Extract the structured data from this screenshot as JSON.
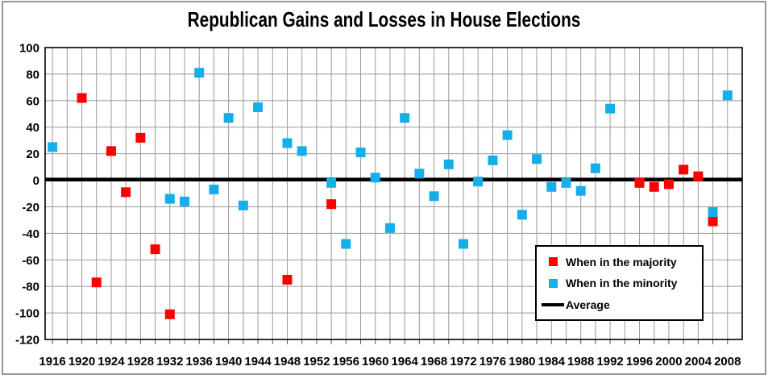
{
  "colors": {
    "majority": "#FF0000",
    "minority": "#14AFEB",
    "average": "#000000",
    "gridline": "#999999",
    "plot_border": "#000000",
    "tick": "#555555",
    "outer_frame": "#969696"
  },
  "legend": {
    "majority_label": "When in the majority",
    "minority_label": "When in the minority",
    "average_label": "Average"
  },
  "chart_data": {
    "type": "scatter",
    "title": "Republican Gains and Losses in House Elections",
    "xlabel": "",
    "ylabel": "",
    "xlim": [
      1915,
      2010
    ],
    "ylim": [
      -120,
      100
    ],
    "grid": true,
    "x_gridline_interval": 2,
    "x_first_gridline": 1916,
    "x_last_gridline": 2008,
    "y_tick_interval": 20,
    "x_ticks": [
      1916,
      1920,
      1924,
      1928,
      1932,
      1936,
      1940,
      1944,
      1948,
      1952,
      1956,
      1960,
      1964,
      1968,
      1972,
      1976,
      1980,
      1984,
      1988,
      1992,
      1996,
      2000,
      2004,
      2008
    ],
    "y_ticks": [
      100,
      80,
      60,
      40,
      20,
      0,
      -20,
      -40,
      -60,
      -80,
      -100,
      -120
    ],
    "legend_position": "inside lower-right",
    "marker": "square",
    "series": [
      {
        "key": "majority",
        "name": "When in the majority",
        "type": "scatter",
        "color": "#FF0000",
        "points": [
          [
            1920,
            62
          ],
          [
            1922,
            -77
          ],
          [
            1924,
            22
          ],
          [
            1926,
            -9
          ],
          [
            1928,
            32
          ],
          [
            1930,
            -52
          ],
          [
            1932,
            -101
          ],
          [
            1948,
            -75
          ],
          [
            1954,
            -18
          ],
          [
            1996,
            -2
          ],
          [
            1998,
            -5
          ],
          [
            2000,
            -3
          ],
          [
            2002,
            8
          ],
          [
            2004,
            3
          ],
          [
            2006,
            -31
          ]
        ]
      },
      {
        "key": "minority",
        "name": "When in the minority",
        "type": "scatter",
        "color": "#14AFEB",
        "points": [
          [
            1916,
            25
          ],
          [
            1932,
            -14
          ],
          [
            1934,
            -16
          ],
          [
            1936,
            81
          ],
          [
            1938,
            -7
          ],
          [
            1940,
            47
          ],
          [
            1942,
            -19
          ],
          [
            1944,
            55
          ],
          [
            1948,
            28
          ],
          [
            1950,
            22
          ],
          [
            1954,
            -2
          ],
          [
            1956,
            -48
          ],
          [
            1958,
            21
          ],
          [
            1960,
            2
          ],
          [
            1962,
            -36
          ],
          [
            1964,
            47
          ],
          [
            1966,
            5
          ],
          [
            1968,
            -12
          ],
          [
            1970,
            12
          ],
          [
            1972,
            -48
          ],
          [
            1974,
            -1
          ],
          [
            1976,
            15
          ],
          [
            1978,
            34
          ],
          [
            1980,
            -26
          ],
          [
            1982,
            16
          ],
          [
            1984,
            -5
          ],
          [
            1986,
            -2
          ],
          [
            1988,
            -8
          ],
          [
            1990,
            9
          ],
          [
            1992,
            54
          ],
          [
            2006,
            -24
          ],
          [
            2008,
            64
          ]
        ]
      },
      {
        "key": "average",
        "name": "Average",
        "type": "line",
        "color": "#000000",
        "value": 0.5
      }
    ]
  }
}
